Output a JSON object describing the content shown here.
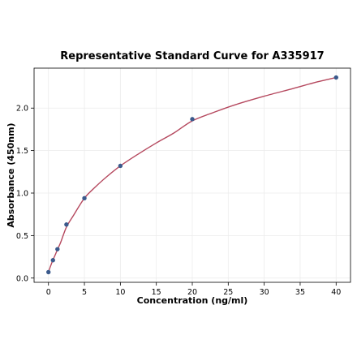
{
  "chart_data": {
    "type": "scatter",
    "title": "Representative Standard Curve for A335917",
    "xlabel": "Concentration (ng/ml)",
    "ylabel": "Absorbance (450nm)",
    "xlim": [
      -2,
      42
    ],
    "ylim": [
      -0.05,
      2.47
    ],
    "x_ticks": [
      0,
      5,
      10,
      15,
      20,
      25,
      30,
      35,
      40
    ],
    "y_ticks": [
      0.0,
      0.5,
      1.0,
      1.5,
      2.0
    ],
    "x_tick_labels": [
      "0",
      "5",
      "10",
      "15",
      "20",
      "25",
      "30",
      "35",
      "40"
    ],
    "y_tick_labels": [
      "0.0",
      "0.5",
      "1.0",
      "1.5",
      "2.0"
    ],
    "grid": true,
    "series": [
      {
        "x": [
          0,
          0.625,
          1.25,
          2.5,
          5,
          10,
          20,
          40
        ],
        "y": [
          0.07,
          0.21,
          0.34,
          0.63,
          0.94,
          1.32,
          1.87,
          2.36
        ]
      }
    ],
    "fit_curve": {
      "x": [
        0,
        0.2,
        0.4,
        0.625,
        0.9,
        1.25,
        1.7,
        2.5,
        3.5,
        5,
        6.5,
        8,
        10,
        12.5,
        15,
        17.5,
        20,
        23,
        26,
        30,
        34,
        37,
        40
      ],
      "y": [
        0.07,
        0.12,
        0.165,
        0.215,
        0.265,
        0.335,
        0.42,
        0.6,
        0.74,
        0.94,
        1.07,
        1.185,
        1.32,
        1.46,
        1.59,
        1.71,
        1.85,
        1.95,
        2.04,
        2.14,
        2.23,
        2.3,
        2.36
      ]
    },
    "colors": {
      "points": "#3b5a8c",
      "curve": "#b5485e",
      "grid": "#ececec",
      "axis": "#000000"
    }
  }
}
